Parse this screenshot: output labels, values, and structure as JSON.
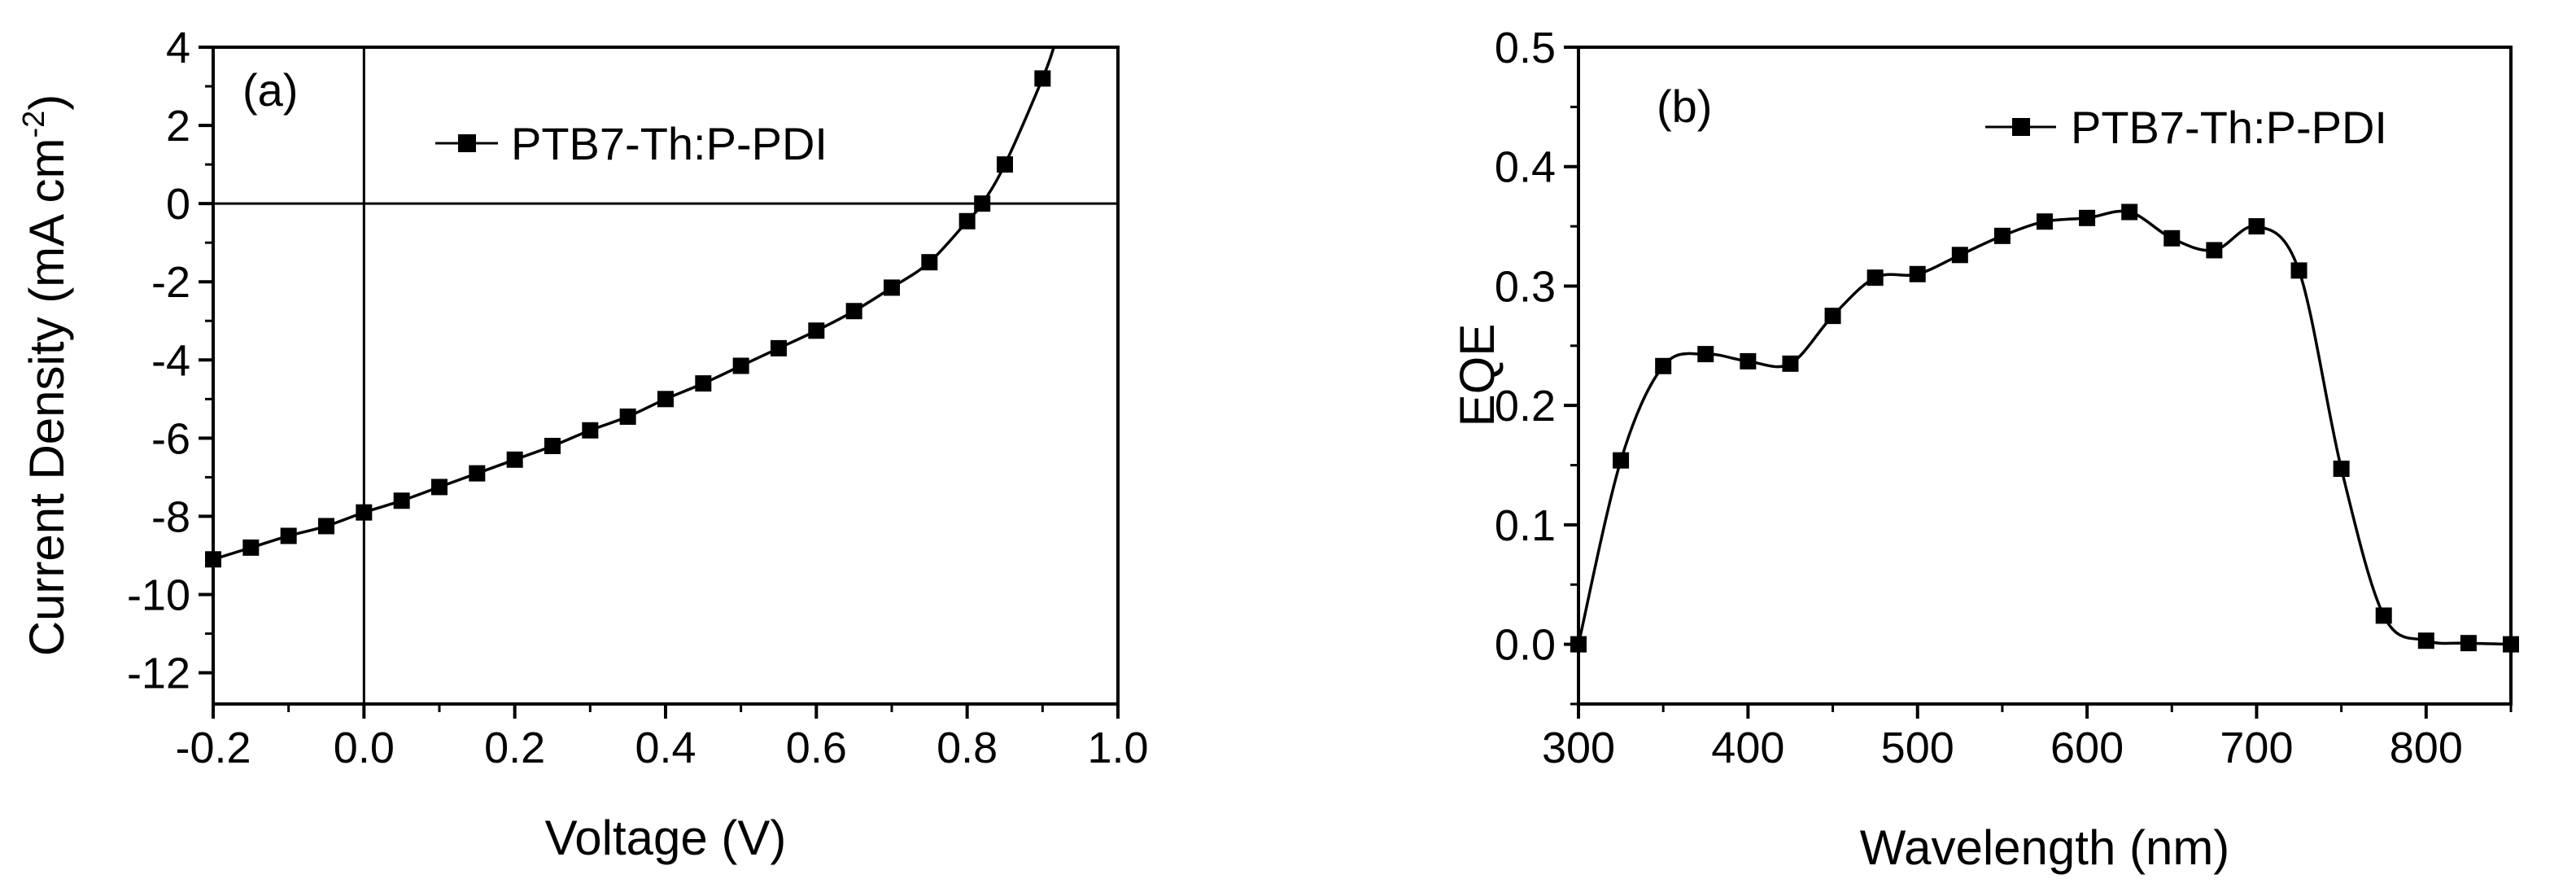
{
  "chart_data": [
    {
      "type": "line",
      "panel_label": "(a)",
      "xlabel": "Voltage (V)",
      "ylabel": "Current Density (mA cm",
      "ylabel_sup": "-2",
      "ylabel_end": ")",
      "xlim": [
        -0.2,
        1.0
      ],
      "ylim": [
        -12.8,
        4
      ],
      "xticks": [
        "-0.2",
        "0.0",
        "0.2",
        "0.4",
        "0.6",
        "0.8",
        "1.0"
      ],
      "yticks": [
        "4",
        "2",
        "0",
        "-2",
        "-4",
        "-6",
        "-8",
        "-10",
        "-12"
      ],
      "legend_position": "top-right",
      "reference_lines": {
        "x": 0,
        "y": 0
      },
      "series": [
        {
          "name": "PTB7-Th:P-PDI",
          "marker": "square",
          "x": [
            -0.2,
            -0.15,
            -0.1,
            -0.05,
            0.0,
            0.05,
            0.1,
            0.15,
            0.2,
            0.25,
            0.3,
            0.35,
            0.4,
            0.45,
            0.5,
            0.55,
            0.6,
            0.65,
            0.7,
            0.75,
            0.8,
            0.82,
            0.85,
            0.9
          ],
          "y": [
            -9.1,
            -8.8,
            -8.5,
            -8.25,
            -7.9,
            -7.6,
            -7.25,
            -6.9,
            -6.55,
            -6.2,
            -5.8,
            -5.45,
            -5.0,
            -4.6,
            -4.15,
            -3.7,
            -3.25,
            -2.75,
            -2.15,
            -1.5,
            -0.45,
            0.0,
            1.0,
            3.2
          ]
        }
      ]
    },
    {
      "type": "line",
      "panel_label": "(b)",
      "xlabel": "Wavelength (nm)",
      "ylabel": "EQE",
      "xlim": [
        300,
        850
      ],
      "ylim": [
        -0.05,
        0.5
      ],
      "xticks": [
        "300",
        "400",
        "500",
        "600",
        "700",
        "800"
      ],
      "yticks": [
        "0.5",
        "0.4",
        "0.3",
        "0.2",
        "0.1",
        "0.0"
      ],
      "legend_position": "top-right",
      "series": [
        {
          "name": "PTB7-Th:P-PDI",
          "marker": "square",
          "x": [
            300,
            325,
            350,
            375,
            400,
            425,
            450,
            475,
            500,
            525,
            550,
            575,
            600,
            625,
            650,
            675,
            700,
            725,
            750,
            775,
            800,
            825,
            850
          ],
          "y": [
            0.0,
            0.154,
            0.233,
            0.243,
            0.237,
            0.235,
            0.275,
            0.307,
            0.31,
            0.326,
            0.342,
            0.354,
            0.357,
            0.362,
            0.34,
            0.33,
            0.35,
            0.313,
            0.147,
            0.024,
            0.003,
            0.001,
            0.0
          ]
        }
      ]
    }
  ]
}
